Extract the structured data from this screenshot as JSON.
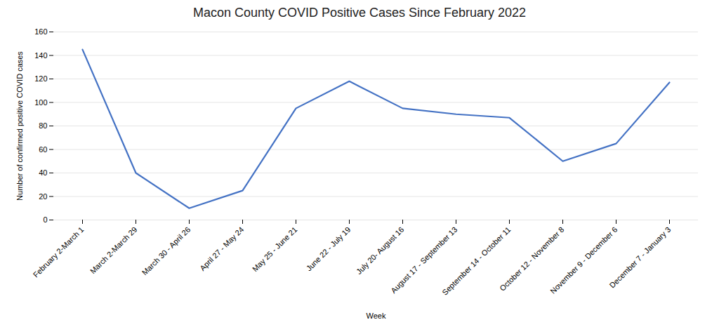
{
  "chart_data": {
    "type": "line",
    "title": "Macon County COVID Positive Cases Since February 2022",
    "xlabel": "Week",
    "ylabel": "Number of confirmed positive COVID cases",
    "categories": [
      "February 2-March 1",
      "March 2-March 29",
      "March 30 - April 26",
      "April 27 - May 24",
      "May 25 - June 21",
      "June 22 - July 19",
      "July 20- August 16",
      "August 17 - September 13",
      "September 14 - October 11",
      "October 12 - November 8",
      "November 9 - December 6",
      "December 7 - January 3"
    ],
    "values": [
      145,
      40,
      10,
      25,
      95,
      118,
      95,
      90,
      87,
      50,
      65,
      117
    ],
    "color": "#4472C4",
    "ylim": [
      0,
      160
    ],
    "yticks": [
      0,
      20,
      40,
      60,
      80,
      100,
      120,
      140,
      160
    ],
    "grid": true
  }
}
